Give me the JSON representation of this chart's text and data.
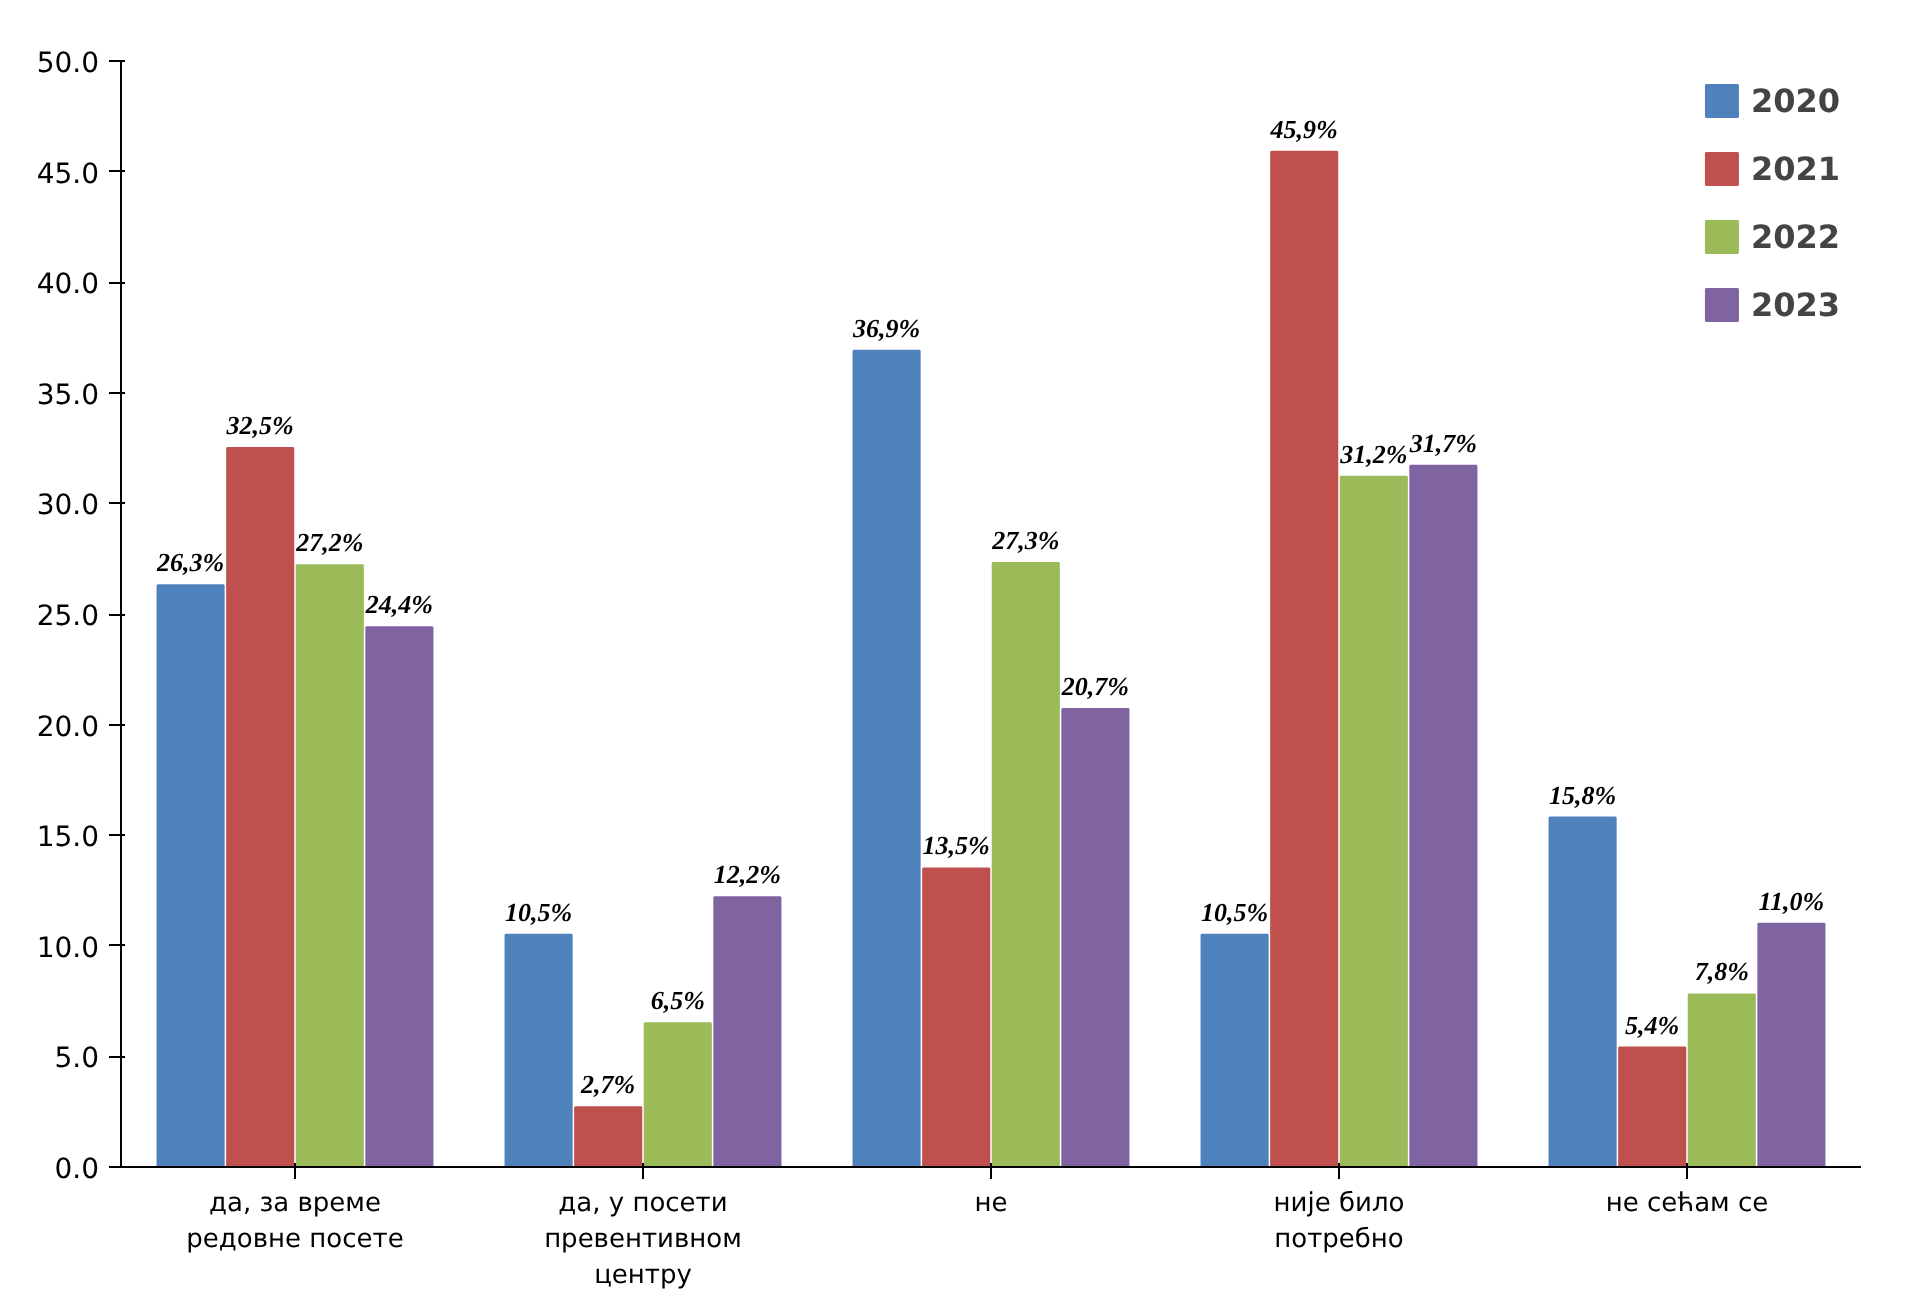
{
  "chart_data": {
    "type": "bar",
    "categories": [
      "да, за време редовне посете",
      "да, у посети превентивном центру",
      "не",
      "није било потребно",
      "не сећам се"
    ],
    "series": [
      {
        "name": "2020",
        "color": "#4f81bd",
        "values": [
          26.3,
          10.5,
          36.9,
          10.5,
          15.8
        ],
        "value_labels": [
          "26,3%",
          "10,5%",
          "36,9%",
          "10,5%",
          "15,8%"
        ]
      },
      {
        "name": "2021",
        "color": "#c0504d",
        "values": [
          32.5,
          2.7,
          13.5,
          45.9,
          5.4
        ],
        "value_labels": [
          "32,5%",
          "2,7%",
          "13,5%",
          "45,9%",
          "5,4%"
        ]
      },
      {
        "name": "2022",
        "color": "#9bbb59",
        "values": [
          27.2,
          6.5,
          27.3,
          31.2,
          7.8
        ],
        "value_labels": [
          "27,2%",
          "6,5%",
          "27,3%",
          "31,2%",
          "7,8%"
        ]
      },
      {
        "name": "2023",
        "color": "#8064a2",
        "values": [
          24.4,
          12.2,
          20.7,
          31.7,
          11.0
        ],
        "value_labels": [
          "24,4%",
          "12,2%",
          "20,7%",
          "31,7%",
          "11,0%"
        ]
      }
    ],
    "ylim": [
      0,
      50
    ],
    "yticks": [
      {
        "value": 0,
        "label": "0.0"
      },
      {
        "value": 5,
        "label": "5.0"
      },
      {
        "value": 10,
        "label": "10.0"
      },
      {
        "value": 15,
        "label": "15.0"
      },
      {
        "value": 20,
        "label": "20.0"
      },
      {
        "value": 25,
        "label": "25.0"
      },
      {
        "value": 30,
        "label": "30.0"
      },
      {
        "value": 35,
        "label": "35.0"
      },
      {
        "value": 40,
        "label": "40.0"
      },
      {
        "value": 45,
        "label": "45.0"
      },
      {
        "value": 50,
        "label": "50.0"
      }
    ],
    "grid": false,
    "legend": "top right"
  }
}
